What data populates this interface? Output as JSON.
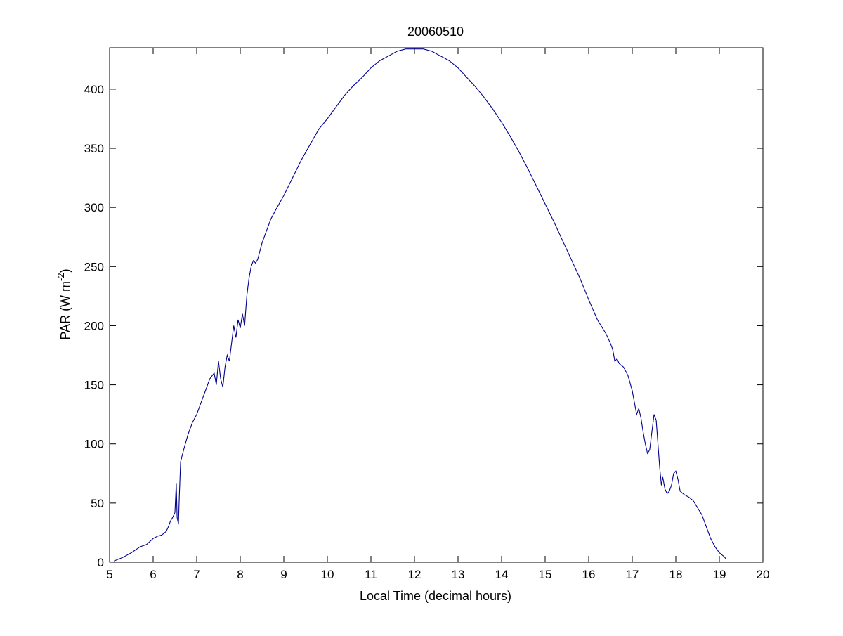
{
  "chart_data": {
    "type": "line",
    "title": "20060510",
    "xlabel": "Local Time (decimal hours)",
    "ylabel": {
      "main": "PAR (W m",
      "superscript": "-2",
      "close": ")"
    },
    "xlim": [
      5,
      20
    ],
    "ylim": [
      0,
      435
    ],
    "xticks": [
      5,
      6,
      7,
      8,
      9,
      10,
      11,
      12,
      13,
      14,
      15,
      16,
      17,
      18,
      19,
      20
    ],
    "yticks": [
      0,
      50,
      100,
      150,
      200,
      250,
      300,
      350,
      400
    ],
    "xtick_labels": [
      "5",
      "6",
      "7",
      "8",
      "9",
      "10",
      "11",
      "12",
      "13",
      "14",
      "15",
      "16",
      "17",
      "18",
      "19",
      "20"
    ],
    "ytick_labels": [
      "0",
      "50",
      "100",
      "150",
      "200",
      "250",
      "300",
      "350",
      "400"
    ],
    "grid": false,
    "line_color": "#00008b",
    "series": [
      {
        "x": [
          5.1,
          5.3,
          5.5,
          5.7,
          5.85,
          6.0,
          6.1,
          6.2,
          6.3,
          6.35,
          6.4,
          6.45,
          6.5,
          6.53,
          6.55,
          6.58,
          6.6,
          6.63,
          6.7,
          6.8,
          6.9,
          7.0,
          7.1,
          7.2,
          7.3,
          7.4,
          7.45,
          7.5,
          7.55,
          7.6,
          7.65,
          7.7,
          7.75,
          7.8,
          7.85,
          7.9,
          7.95,
          8.0,
          8.05,
          8.1,
          8.15,
          8.2,
          8.25,
          8.3,
          8.35,
          8.4,
          8.5,
          8.6,
          8.7,
          8.8,
          9.0,
          9.2,
          9.4,
          9.6,
          9.8,
          10.0,
          10.2,
          10.4,
          10.6,
          10.8,
          11.0,
          11.2,
          11.4,
          11.6,
          11.8,
          12.0,
          12.2,
          12.4,
          12.6,
          12.8,
          13.0,
          13.2,
          13.4,
          13.6,
          13.8,
          14.0,
          14.2,
          14.4,
          14.6,
          14.8,
          15.0,
          15.2,
          15.4,
          15.6,
          15.8,
          16.0,
          16.2,
          16.4,
          16.5,
          16.55,
          16.6,
          16.65,
          16.7,
          16.8,
          16.9,
          17.0,
          17.05,
          17.1,
          17.15,
          17.2,
          17.25,
          17.3,
          17.35,
          17.4,
          17.45,
          17.5,
          17.55,
          17.6,
          17.63,
          17.67,
          17.7,
          17.75,
          17.8,
          17.85,
          17.9,
          17.95,
          18.0,
          18.05,
          18.1,
          18.2,
          18.3,
          18.4,
          18.5,
          18.6,
          18.7,
          18.8,
          18.9,
          19.0,
          19.1,
          19.15
        ],
        "y": [
          1,
          4,
          8,
          13,
          15,
          20,
          22,
          23,
          26,
          30,
          35,
          38,
          42,
          67,
          38,
          32,
          55,
          85,
          95,
          108,
          118,
          125,
          135,
          145,
          155,
          160,
          150,
          170,
          155,
          148,
          165,
          175,
          170,
          185,
          200,
          190,
          205,
          198,
          210,
          200,
          225,
          240,
          250,
          255,
          253,
          256,
          270,
          280,
          290,
          297,
          310,
          325,
          340,
          353,
          366,
          375,
          385,
          395,
          403,
          410,
          418,
          424,
          428,
          432,
          434,
          434,
          434,
          432,
          428,
          424,
          418,
          410,
          402,
          393,
          383,
          372,
          360,
          347,
          333,
          318,
          303,
          288,
          272,
          256,
          240,
          222,
          205,
          193,
          185,
          180,
          170,
          172,
          168,
          165,
          158,
          145,
          135,
          125,
          130,
          122,
          110,
          100,
          92,
          95,
          110,
          125,
          120,
          95,
          80,
          65,
          72,
          62,
          58,
          60,
          65,
          75,
          77,
          70,
          60,
          57,
          55,
          52,
          46,
          40,
          30,
          20,
          13,
          8,
          5,
          3
        ]
      }
    ]
  }
}
